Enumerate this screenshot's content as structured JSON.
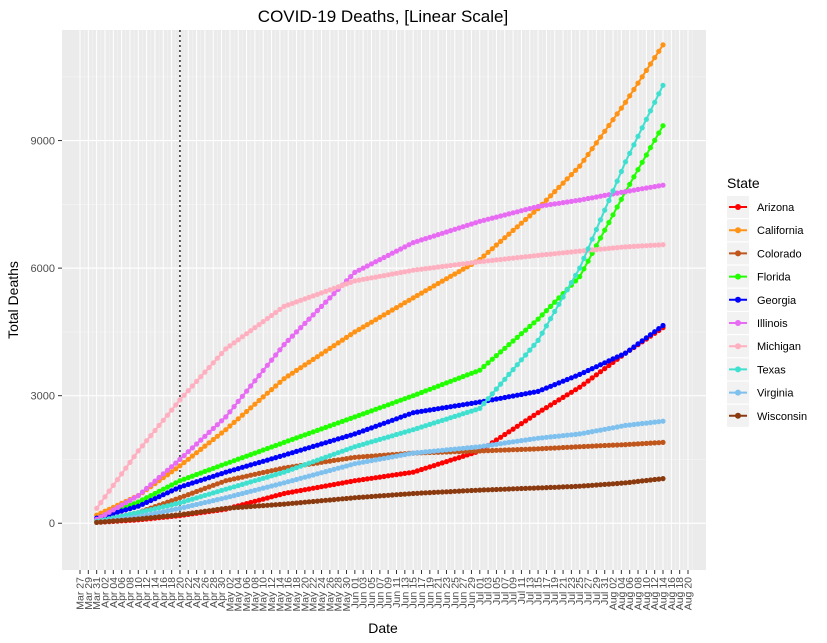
{
  "chart_data": {
    "type": "scatter",
    "title": "COVID-19 Deaths, [Linear Scale]",
    "xlabel": "Date",
    "ylabel": "Total Deaths",
    "xlim": [
      "2020-03-27",
      "2020-08-20"
    ],
    "ylim": [
      -1100,
      11600
    ],
    "yticks": [
      0,
      3000,
      6000,
      9000
    ],
    "xticks": [
      "Mar 27",
      "Mar 29",
      "Mar 31",
      "Apr 02",
      "Apr 04",
      "Apr 06",
      "Apr 08",
      "Apr 10",
      "Apr 12",
      "Apr 14",
      "Apr 16",
      "Apr 18",
      "Apr 20",
      "Apr 22",
      "Apr 24",
      "Apr 26",
      "Apr 28",
      "Apr 30",
      "May 02",
      "May 04",
      "May 06",
      "May 08",
      "May 10",
      "May 12",
      "May 14",
      "May 16",
      "May 18",
      "May 20",
      "May 22",
      "May 24",
      "May 26",
      "May 28",
      "May 30",
      "Jun 01",
      "Jun 03",
      "Jun 05",
      "Jun 07",
      "Jun 09",
      "Jun 11",
      "Jun 13",
      "Jun 15",
      "Jun 17",
      "Jun 19",
      "Jun 21",
      "Jun 23",
      "Jun 25",
      "Jun 27",
      "Jun 29",
      "Jul 01",
      "Jul 03",
      "Jul 05",
      "Jul 07",
      "Jul 09",
      "Jul 11",
      "Jul 13",
      "Jul 15",
      "Jul 17",
      "Jul 19",
      "Jul 21",
      "Jul 23",
      "Jul 25",
      "Jul 27",
      "Jul 29",
      "Jul 31",
      "Aug 02",
      "Aug 04",
      "Aug 06",
      "Aug 08",
      "Aug 10",
      "Aug 12",
      "Aug 14",
      "Aug 16",
      "Aug 18",
      "Aug 20"
    ],
    "vline_date": "2020-04-20",
    "grid": true,
    "legend_title": "State",
    "legend_position": "right",
    "series_dates": [
      "2020-03-31",
      "2020-04-10",
      "2020-04-20",
      "2020-05-01",
      "2020-05-15",
      "2020-06-01",
      "2020-06-15",
      "2020-07-01",
      "2020-07-15",
      "2020-07-25",
      "2020-08-05",
      "2020-08-14"
    ],
    "series": [
      {
        "name": "Arizona",
        "color": "#ff0000",
        "values": [
          20,
          80,
          180,
          330,
          700,
          1000,
          1200,
          1700,
          2600,
          3200,
          4000,
          4600
        ]
      },
      {
        "name": "California",
        "color": "#ff9315",
        "values": [
          190,
          650,
          1350,
          2200,
          3400,
          4500,
          5300,
          6200,
          7400,
          8400,
          9900,
          11250
        ]
      },
      {
        "name": "Colorado",
        "color": "#c0561c",
        "values": [
          30,
          250,
          600,
          1000,
          1300,
          1550,
          1650,
          1700,
          1750,
          1800,
          1850,
          1900
        ]
      },
      {
        "name": "Florida",
        "color": "#22ff00",
        "values": [
          85,
          500,
          1000,
          1400,
          1900,
          2500,
          3000,
          3600,
          4800,
          5800,
          7800,
          9350
        ]
      },
      {
        "name": "Georgia",
        "color": "#0000ff",
        "values": [
          120,
          400,
          850,
          1200,
          1600,
          2100,
          2600,
          2850,
          3100,
          3500,
          4000,
          4650
        ]
      },
      {
        "name": "Illinois",
        "color": "#e76bf3",
        "values": [
          90,
          650,
          1500,
          2500,
          4200,
          5900,
          6600,
          7100,
          7450,
          7600,
          7800,
          7950
        ]
      },
      {
        "name": "Michigan",
        "color": "#ffb0c0",
        "values": [
          350,
          1700,
          2900,
          4100,
          5100,
          5700,
          5950,
          6150,
          6300,
          6400,
          6500,
          6550
        ]
      },
      {
        "name": "Texas",
        "color": "#40e0d0",
        "values": [
          40,
          250,
          480,
          800,
          1200,
          1800,
          2200,
          2700,
          4300,
          6000,
          8500,
          10300
        ]
      },
      {
        "name": "Virginia",
        "color": "#7ec0ee",
        "values": [
          20,
          150,
          350,
          600,
          950,
          1400,
          1650,
          1800,
          2000,
          2100,
          2300,
          2400
        ]
      },
      {
        "name": "Wisconsin",
        "color": "#8b3a0f",
        "values": [
          20,
          100,
          200,
          350,
          450,
          600,
          700,
          780,
          830,
          870,
          950,
          1050
        ]
      }
    ]
  }
}
